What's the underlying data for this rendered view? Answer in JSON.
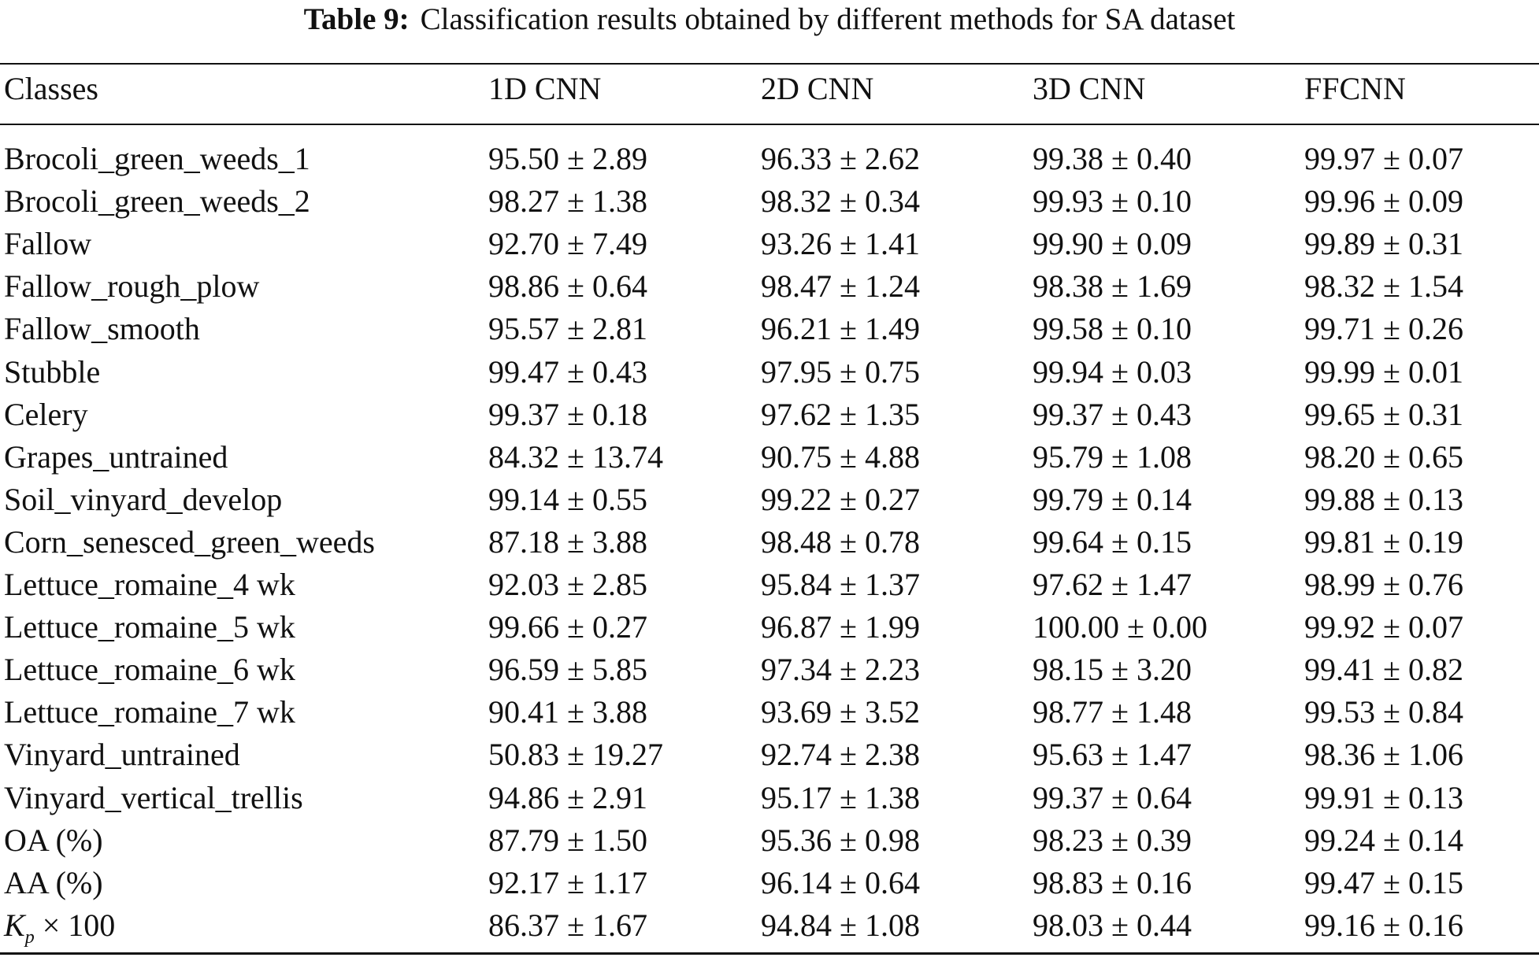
{
  "title": {
    "label": "Table 9:",
    "text": "Classification results obtained by different methods for SA dataset"
  },
  "table": {
    "headers": [
      "Classes",
      "1D CNN",
      "2D CNN",
      "3D CNN",
      "FFCNN"
    ],
    "rows": [
      [
        "Brocoli_green_weeds_1",
        "95.50 ± 2.89",
        "96.33 ± 2.62",
        "99.38 ± 0.40",
        "99.97 ± 0.07"
      ],
      [
        "Brocoli_green_weeds_2",
        "98.27 ± 1.38",
        "98.32 ± 0.34",
        "99.93 ± 0.10",
        "99.96 ± 0.09"
      ],
      [
        "Fallow",
        "92.70 ± 7.49",
        "93.26 ± 1.41",
        "99.90 ± 0.09",
        "99.89 ± 0.31"
      ],
      [
        "Fallow_rough_plow",
        "98.86 ± 0.64",
        "98.47 ± 1.24",
        "98.38 ± 1.69",
        "98.32 ± 1.54"
      ],
      [
        "Fallow_smooth",
        "95.57 ± 2.81",
        "96.21 ± 1.49",
        "99.58 ± 0.10",
        "99.71 ± 0.26"
      ],
      [
        "Stubble",
        "99.47 ± 0.43",
        "97.95 ± 0.75",
        "99.94 ± 0.03",
        "99.99 ± 0.01"
      ],
      [
        "Celery",
        "99.37 ± 0.18",
        "97.62 ± 1.35",
        "99.37 ± 0.43",
        "99.65 ± 0.31"
      ],
      [
        "Grapes_untrained",
        "84.32 ± 13.74",
        "90.75 ± 4.88",
        "95.79 ± 1.08",
        "98.20 ± 0.65"
      ],
      [
        "Soil_vinyard_develop",
        "99.14 ± 0.55",
        "99.22 ± 0.27",
        "99.79 ± 0.14",
        "99.88 ± 0.13"
      ],
      [
        "Corn_senesced_green_weeds",
        "87.18 ± 3.88",
        "98.48 ± 0.78",
        "99.64 ± 0.15",
        "99.81 ± 0.19"
      ],
      [
        "Lettuce_romaine_4 wk",
        "92.03 ± 2.85",
        "95.84 ± 1.37",
        "97.62 ± 1.47",
        "98.99 ± 0.76"
      ],
      [
        "Lettuce_romaine_5 wk",
        "99.66 ± 0.27",
        "96.87 ± 1.99",
        "100.00 ± 0.00",
        "99.92 ± 0.07"
      ],
      [
        "Lettuce_romaine_6 wk",
        "96.59 ± 5.85",
        "97.34 ± 2.23",
        "98.15 ± 3.20",
        "99.41 ± 0.82"
      ],
      [
        "Lettuce_romaine_7 wk",
        "90.41 ± 3.88",
        "93.69 ± 3.52",
        "98.77 ± 1.48",
        "99.53 ± 0.84"
      ],
      [
        "Vinyard_untrained",
        "50.83 ± 19.27",
        "92.74 ± 2.38",
        "95.63 ± 1.47",
        "98.36 ± 1.06"
      ],
      [
        "Vinyard_vertical_trellis",
        "94.86 ± 2.91",
        "95.17 ± 1.38",
        "99.37 ± 0.64",
        "99.91 ± 0.13"
      ],
      [
        "OA (%)",
        "87.79 ± 1.50",
        "95.36 ± 0.98",
        "98.23 ± 0.39",
        "99.24 ± 0.14"
      ],
      [
        "AA (%)",
        "92.17 ± 1.17",
        "96.14 ± 0.64",
        "98.83 ± 0.16",
        "99.47 ± 0.15"
      ]
    ],
    "kappa_row": {
      "symbol": "K",
      "subscript": "p",
      "suffix": " × 100",
      "values": [
        "86.37 ± 1.67",
        "94.84 ± 1.08",
        "98.03 ± 0.44",
        "99.16 ± 0.16"
      ]
    }
  }
}
